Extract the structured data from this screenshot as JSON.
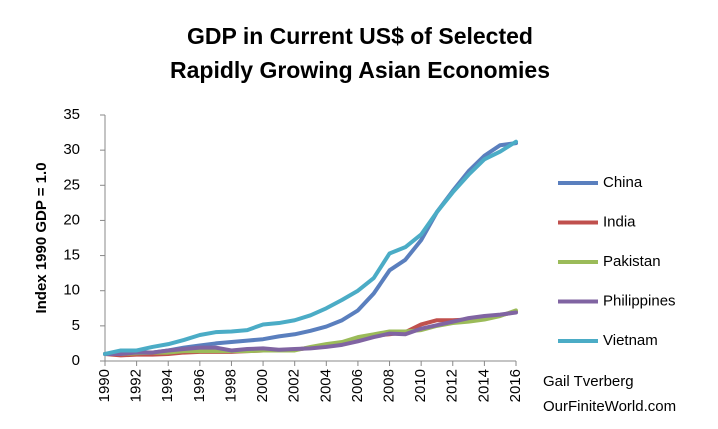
{
  "chart_data": {
    "type": "line",
    "title": [
      "GDP in Current US$ of Selected",
      "Rapidly Growing Asian Economies"
    ],
    "y_label": "Index 1990 GDP = 1.0",
    "annotations": [
      "Gail Tverberg",
      "OurFiniteWorld.com"
    ],
    "x": [
      1990,
      1991,
      1992,
      1993,
      1994,
      1995,
      1996,
      1997,
      1998,
      1999,
      2000,
      2001,
      2002,
      2003,
      2004,
      2005,
      2006,
      2007,
      2008,
      2009,
      2010,
      2011,
      2012,
      2013,
      2014,
      2015,
      2016
    ],
    "xlim": [
      1990,
      2016
    ],
    "xticks": [
      1990,
      1992,
      1994,
      1996,
      1998,
      2000,
      2002,
      2004,
      2006,
      2008,
      2010,
      2012,
      2014,
      2016
    ],
    "ylim": [
      0,
      35
    ],
    "yticks": [
      0,
      5,
      10,
      15,
      20,
      25,
      30,
      35
    ],
    "grid": false,
    "legend": "right",
    "series": [
      {
        "name": "China",
        "color": "#5a7fbe",
        "values": [
          1.0,
          1.1,
          1.3,
          1.2,
          1.5,
          1.9,
          2.2,
          2.5,
          2.7,
          2.9,
          3.1,
          3.5,
          3.8,
          4.3,
          4.9,
          5.8,
          7.2,
          9.6,
          12.9,
          14.4,
          17.2,
          21.2,
          24.2,
          27.0,
          29.2,
          30.7,
          31.0
        ]
      },
      {
        "name": "India",
        "color": "#c0504d",
        "values": [
          1.0,
          0.8,
          0.9,
          0.9,
          1.0,
          1.2,
          1.3,
          1.3,
          1.3,
          1.4,
          1.5,
          1.5,
          1.6,
          1.9,
          2.2,
          2.5,
          2.9,
          3.6,
          3.8,
          4.1,
          5.2,
          5.8,
          5.8,
          5.9,
          6.2,
          6.5,
          7.0
        ]
      },
      {
        "name": "Pakistan",
        "color": "#9bbb59",
        "values": [
          1.0,
          1.0,
          1.1,
          1.2,
          1.2,
          1.4,
          1.4,
          1.4,
          1.4,
          1.4,
          1.5,
          1.5,
          1.5,
          2.0,
          2.4,
          2.7,
          3.4,
          3.8,
          4.2,
          4.2,
          4.4,
          5.0,
          5.4,
          5.6,
          5.9,
          6.4,
          7.2
        ]
      },
      {
        "name": "Philippines",
        "color": "#8064a2",
        "values": [
          1.0,
          1.0,
          1.2,
          1.2,
          1.5,
          1.7,
          1.9,
          1.9,
          1.5,
          1.7,
          1.8,
          1.6,
          1.7,
          1.8,
          2.0,
          2.3,
          2.8,
          3.4,
          3.9,
          3.8,
          4.6,
          5.1,
          5.6,
          6.1,
          6.4,
          6.6,
          6.9
        ]
      },
      {
        "name": "Vietnam",
        "color": "#4bacc6",
        "values": [
          1.0,
          1.5,
          1.5,
          2.0,
          2.4,
          3.0,
          3.7,
          4.1,
          4.2,
          4.4,
          5.2,
          5.4,
          5.8,
          6.5,
          7.5,
          8.7,
          10.0,
          11.8,
          15.3,
          16.2,
          18.0,
          21.2,
          24.0,
          26.5,
          28.7,
          29.8,
          31.2
        ]
      }
    ]
  }
}
